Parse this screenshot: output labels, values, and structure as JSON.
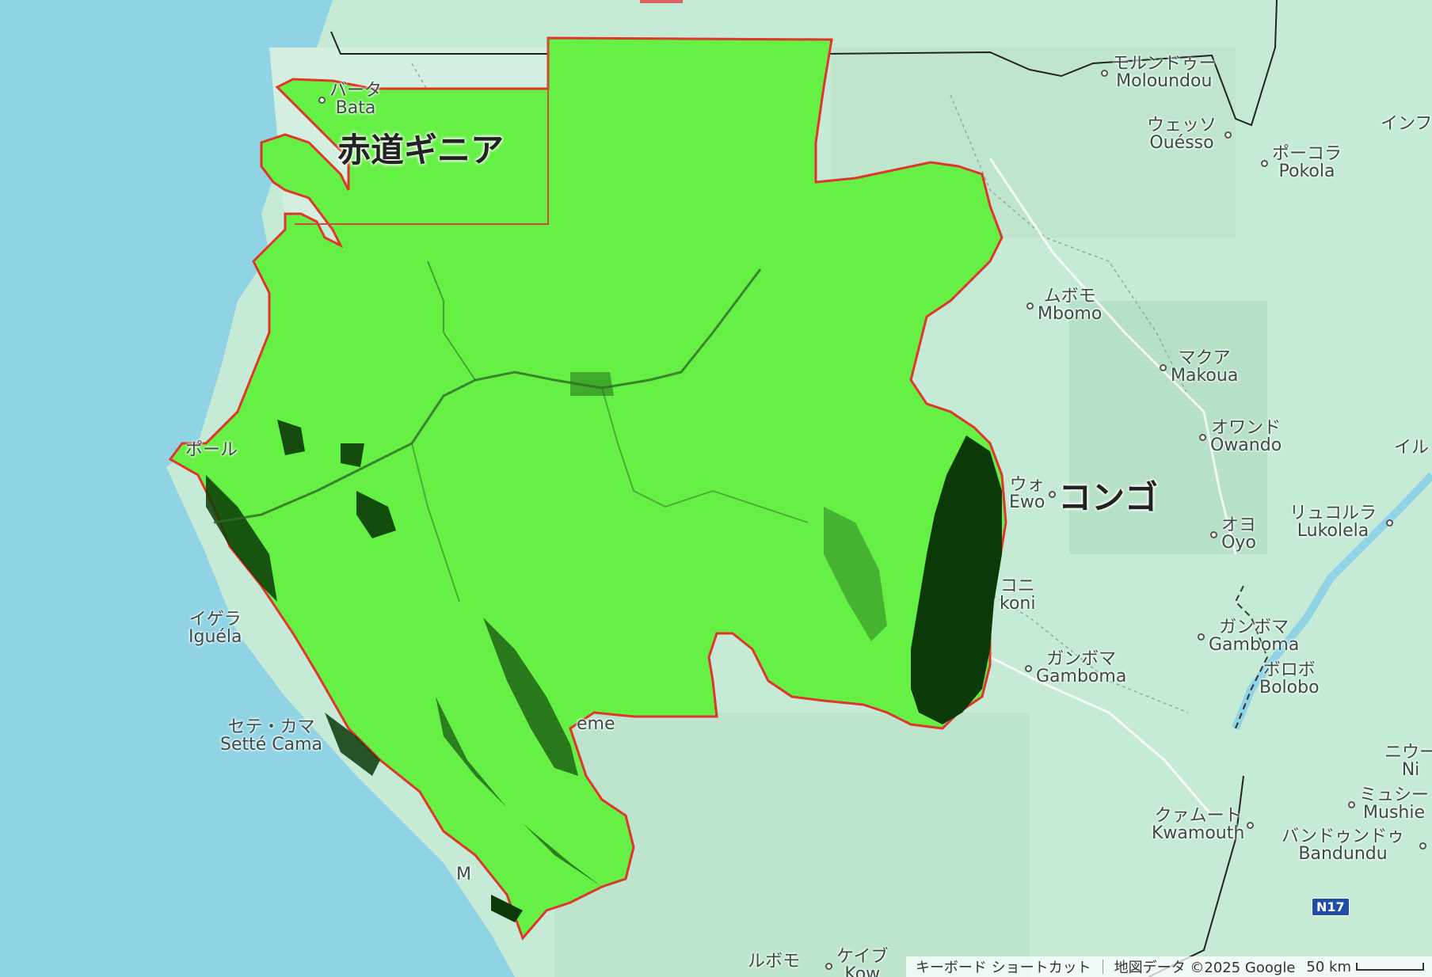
{
  "map": {
    "countries": {
      "equatorial_guinea": "赤道ギニア",
      "congo": "コンゴ"
    },
    "places": [
      {
        "id": "bata",
        "jp": "バータ",
        "en": "Bata"
      },
      {
        "id": "moloundou",
        "jp": "モルンドゥー",
        "en": "Moloundou"
      },
      {
        "id": "ouesso",
        "jp": "ウェッソ",
        "en": "Ouésso"
      },
      {
        "id": "pokola",
        "jp": "ポーコラ",
        "en": "Pokola"
      },
      {
        "id": "inf",
        "jp": "インフ",
        "en": ""
      },
      {
        "id": "mbomo",
        "jp": "ムボモ",
        "en": "Mbomo"
      },
      {
        "id": "makoua",
        "jp": "マクア",
        "en": "Makoua"
      },
      {
        "id": "owando",
        "jp": "オワンド",
        "en": "Owando"
      },
      {
        "id": "ewo",
        "jp": "ウォ",
        "en": "Ewo"
      },
      {
        "id": "ilu",
        "jp": "イル",
        "en": ""
      },
      {
        "id": "lukolela",
        "jp": "リュコルラ",
        "en": "Lukolela"
      },
      {
        "id": "oyo",
        "jp": "オヨ",
        "en": "Oyo"
      },
      {
        "id": "okoni",
        "jp": "コニ",
        "en": "koni"
      },
      {
        "id": "gamboma1",
        "jp": "ガンボマ",
        "en": "Gamboma"
      },
      {
        "id": "gamboma2",
        "jp": "ガンボマ",
        "en": "Gamboma"
      },
      {
        "id": "bolobo",
        "jp": "ボロボ",
        "en": "Bolobo"
      },
      {
        "id": "port_gentil",
        "jp": "ポール",
        "en": ""
      },
      {
        "id": "iguela",
        "jp": "イゲラ",
        "en": "Iguéla"
      },
      {
        "id": "sette_cama",
        "jp": "セテ・カマ",
        "en": "Setté Cama"
      },
      {
        "id": "nieu",
        "jp": "ニウー",
        "en": "Ni"
      },
      {
        "id": "mushie",
        "jp": "ミュシー",
        "en": "Mushie"
      },
      {
        "id": "kwamouth",
        "jp": "クァムート",
        "en": "Kwamouth"
      },
      {
        "id": "bandundu",
        "jp": "バンドゥンドゥ",
        "en": "Bandundu"
      },
      {
        "id": "lebomo",
        "jp": "ルボモ",
        "en": ""
      },
      {
        "id": "keibu",
        "jp": "ケイブ",
        "en": "Kow"
      },
      {
        "id": "mbe",
        "jp": "",
        "en": "eme"
      },
      {
        "id": "ma",
        "jp": "",
        "en": "M"
      }
    ],
    "road_shield": "N17",
    "colors": {
      "water": "#8fd3e4",
      "land": "#c5ead6",
      "overlay_green": "#66f046",
      "overlay_dark": "#0b3a08",
      "boundary_red": "#e0352b"
    }
  },
  "footer": {
    "keyboard_shortcuts": "キーボード ショートカット",
    "map_data": "地図データ ©2025 Google",
    "scale_label": "50 km"
  }
}
